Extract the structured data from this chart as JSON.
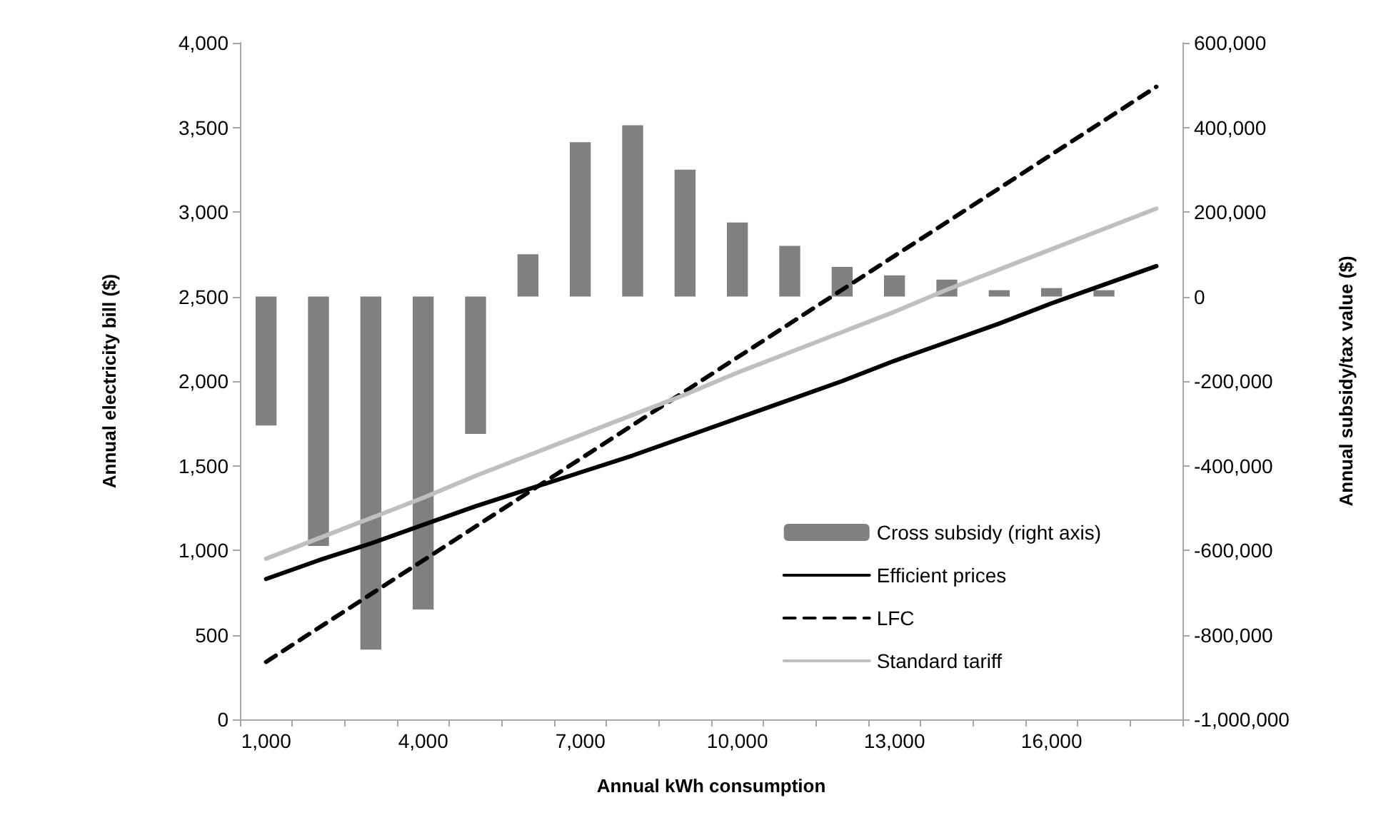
{
  "chart_data": {
    "type": "line",
    "xlabel": "Annual kWh consumption",
    "ylabel": "Annual electricity bill ($)",
    "y2label": "Annual subsidy/tax value ($)",
    "categories": [
      "1,000",
      null,
      null,
      "4,000",
      null,
      null,
      "7,000",
      null,
      null,
      "10,000",
      null,
      null,
      "13,000",
      null,
      null,
      "16,000",
      null,
      null
    ],
    "series": [
      {
        "name": "Cross subsidy (right axis)",
        "type": "bar",
        "axis": "y2",
        "color": "#808080",
        "values": [
          -305000,
          -590000,
          -835000,
          -740000,
          -325000,
          100000,
          365000,
          405000,
          300000,
          175000,
          120000,
          70000,
          50000,
          40000,
          15000,
          20000,
          15000,
          null
        ]
      },
      {
        "name": "Efficient prices",
        "color": "#000000",
        "line_style": "solid",
        "values": [
          830,
          940,
          1040,
          1150,
          1260,
          1360,
          1460,
          1560,
          1670,
          1780,
          1890,
          2000,
          2120,
          2230,
          2340,
          2460,
          2570,
          2680
        ]
      },
      {
        "name": "LFC",
        "color": "#000000",
        "line_style": "dashed",
        "values": [
          340,
          540,
          740,
          940,
          1140,
          1340,
          1540,
          1740,
          1940,
          2140,
          2340,
          2540,
          2740,
          2940,
          3140,
          3340,
          3540,
          3740
        ]
      },
      {
        "name": "Standard tariff",
        "color": "#bfbfbf",
        "line_style": "solid",
        "values": [
          950,
          1070,
          1190,
          1310,
          1440,
          1560,
          1680,
          1800,
          1920,
          2050,
          2170,
          2290,
          2410,
          2540,
          2660,
          2780,
          2900,
          3020
        ]
      }
    ],
    "ylim": [
      0,
      4000
    ],
    "yticks": [
      0,
      500,
      {
        "value": 1000,
        "label": "1,000"
      },
      {
        "value": 1500,
        "label": "1,500"
      },
      {
        "value": 2000,
        "label": "2,000"
      },
      {
        "value": 2500,
        "label": "2,500"
      },
      {
        "value": 3000,
        "label": "3,000"
      },
      {
        "value": 3500,
        "label": "3,500"
      },
      {
        "value": 4000,
        "label": "4,000"
      }
    ],
    "y2lim": [
      -1000000,
      600000
    ],
    "y2ticks": [
      {
        "value": -1000000,
        "label": "-1,000,000"
      },
      {
        "value": -800000,
        "label": "-800,000"
      },
      {
        "value": -600000,
        "label": "-600,000"
      },
      {
        "value": -400000,
        "label": "-400,000"
      },
      {
        "value": -200000,
        "label": "-200,000"
      },
      0,
      {
        "value": 200000,
        "label": "200,000"
      },
      {
        "value": 400000,
        "label": "400,000"
      },
      {
        "value": 600000,
        "label": "600,000"
      }
    ],
    "grid": false,
    "legend": "bottom right",
    "marker": "none"
  }
}
